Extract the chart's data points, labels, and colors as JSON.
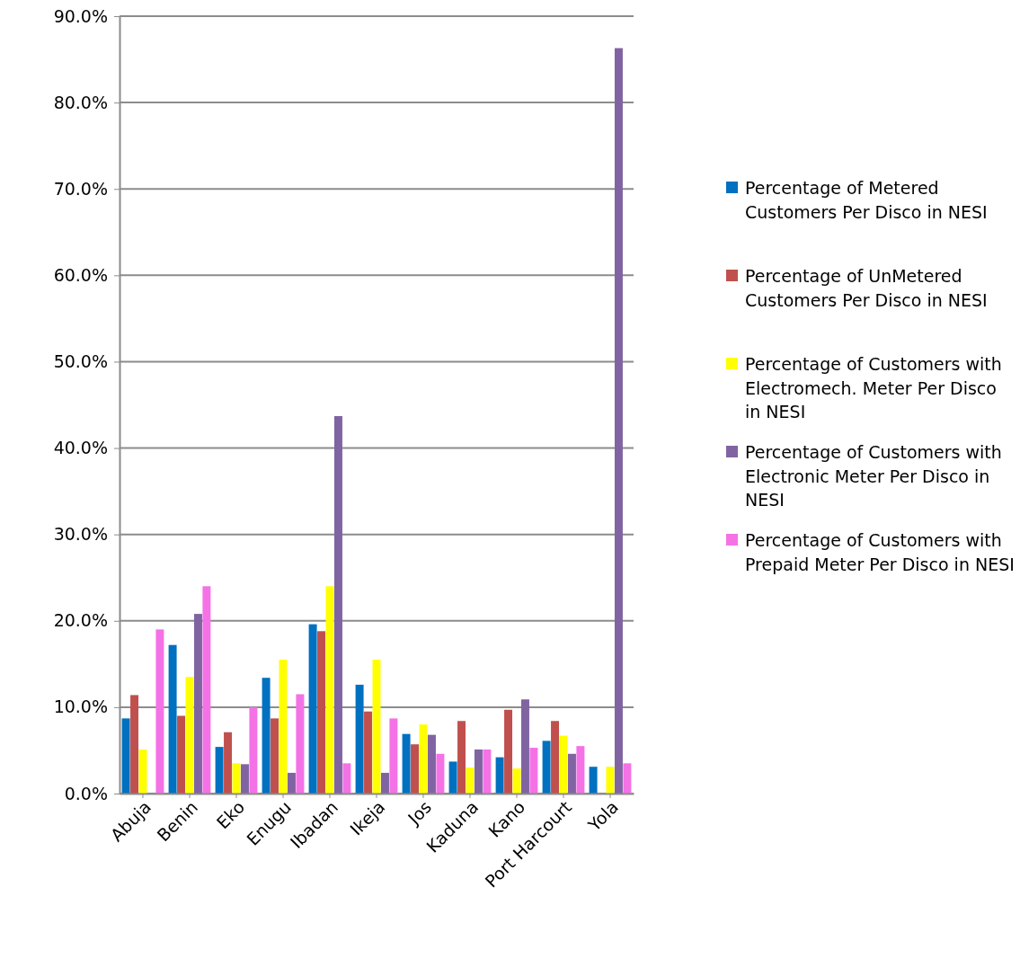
{
  "chart_data": {
    "type": "bar",
    "categories": [
      "Abuja",
      "Benin",
      "Eko",
      "Enugu",
      "Ibadan",
      "Ikeja",
      "Jos",
      "Kaduna",
      "Kano",
      "Port Harcourt",
      "Yola"
    ],
    "series": [
      {
        "name": "Percentage of Metered Customers Per Disco in NESI",
        "color": "#0070c0",
        "values": [
          8.7,
          17.2,
          5.4,
          13.4,
          19.6,
          12.6,
          6.9,
          3.7,
          4.2,
          6.1,
          3.1
        ]
      },
      {
        "name": "Percentage of UnMetered Customers Per Disco in NESI",
        "color": "#c0504d",
        "values": [
          11.4,
          9.0,
          7.1,
          8.7,
          18.8,
          9.5,
          5.7,
          8.4,
          9.7,
          8.4,
          0
        ]
      },
      {
        "name": "Percentage of Customers with Electromech. Meter Per Disco in NESI",
        "color": "#ffff00",
        "values": [
          5.1,
          13.5,
          3.5,
          15.5,
          24.0,
          15.5,
          8.0,
          3.0,
          2.9,
          6.7,
          3.1
        ]
      },
      {
        "name": "Percentage of Customers with Electronic Meter Per Disco in NESI",
        "color": "#8064a2",
        "values": [
          null,
          20.8,
          3.4,
          2.4,
          43.7,
          2.4,
          6.8,
          5.1,
          10.9,
          4.6,
          86.3
        ]
      },
      {
        "name": "Percentage of Customers with Prepaid Meter Per Disco in NESI",
        "color": "#f472e6",
        "values": [
          19.0,
          24.0,
          10.0,
          11.5,
          3.5,
          8.7,
          4.6,
          5.1,
          5.3,
          5.5,
          3.5
        ]
      }
    ],
    "ylim": [
      0,
      90
    ],
    "yticks": [
      {
        "value": 0,
        "label": "0.0%"
      },
      {
        "value": 10,
        "label": "10.0%"
      },
      {
        "value": 20,
        "label": "20.0%"
      },
      {
        "value": 30,
        "label": "30.0%"
      },
      {
        "value": 40,
        "label": "40.0%"
      },
      {
        "value": 50,
        "label": "50.0%"
      },
      {
        "value": 60,
        "label": "60.0%"
      },
      {
        "value": 70,
        "label": "70.0%"
      },
      {
        "value": 80,
        "label": "80.0%"
      },
      {
        "value": 90,
        "label": "90.0%"
      }
    ],
    "grid": "y",
    "legend": "right"
  }
}
